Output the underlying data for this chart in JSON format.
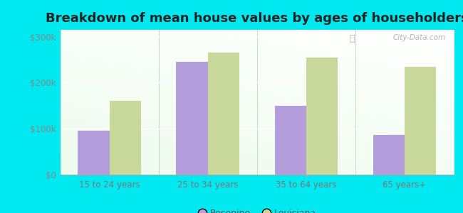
{
  "title": "Breakdown of mean house values by ages of householders",
  "categories": [
    "15 to 24 years",
    "25 to 34 years",
    "35 to 64 years",
    "65 years+"
  ],
  "rosepine_values": [
    95000,
    245000,
    150000,
    87000
  ],
  "louisiana_values": [
    160000,
    265000,
    255000,
    235000
  ],
  "rosepine_color": "#b39ddb",
  "louisiana_color": "#c8d89a",
  "bar_width": 0.32,
  "ylim": [
    0,
    315000
  ],
  "yticks": [
    0,
    100000,
    200000,
    300000
  ],
  "ytick_labels": [
    "$0",
    "$100k",
    "$200k",
    "$300k"
  ],
  "background_outer": "#00e8f0",
  "title_fontsize": 13,
  "legend_labels": [
    "Rosepine",
    "Louisiana"
  ],
  "watermark": "City-Data.com",
  "separator_color": "#aaccaa",
  "grid_color": "#ccddcc"
}
